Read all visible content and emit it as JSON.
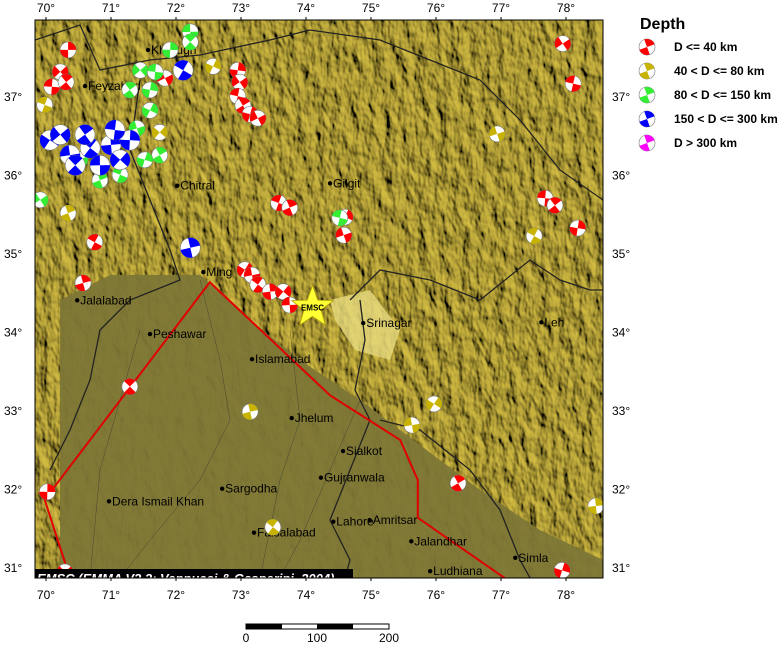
{
  "legend": {
    "title": "Depth",
    "items": [
      {
        "label": "D <= 40 km",
        "color": "#ff0000"
      },
      {
        "label": "40 < D <= 80 km",
        "color": "#c8b400"
      },
      {
        "label": "80 < D <= 150 km",
        "color": "#33ee33"
      },
      {
        "label": "150 < D <= 300 km",
        "color": "#0000ff"
      },
      {
        "label": "D > 300 km",
        "color": "#ff00ff"
      }
    ]
  },
  "credit": "EMSC (EMMA V2.2; Vannucci & Gasperini, 2004)",
  "epicenter": {
    "label": "EMSC",
    "lon": 74.1,
    "lat": 34.32,
    "color": "#ffff33"
  },
  "axes": {
    "lon_ticks": [
      "70°",
      "71°",
      "72°",
      "73°",
      "74°",
      "75°",
      "76°",
      "77°",
      "78°"
    ],
    "lat_ticks": [
      "37°",
      "36°",
      "35°",
      "34°",
      "33°",
      "32°",
      "31°"
    ],
    "lon_range": [
      69.83,
      78.57
    ],
    "lat_range": [
      30.87,
      37.98
    ]
  },
  "scale_bar": {
    "labels": [
      "0",
      "100",
      "200"
    ],
    "unit_km": true
  },
  "cities": [
    {
      "name": "Khorugh",
      "lon": 71.57,
      "lat": 37.6
    },
    {
      "name": "Feyzabad",
      "lon": 70.6,
      "lat": 37.14
    },
    {
      "name": "Chitral",
      "lon": 72.02,
      "lat": 35.87
    },
    {
      "name": "Gilgit",
      "lon": 74.37,
      "lat": 35.9
    },
    {
      "name": "Ming",
      "lon": 72.42,
      "lat": 34.77
    },
    {
      "name": "Jalalabad",
      "lon": 70.48,
      "lat": 34.41
    },
    {
      "name": "Peshawar",
      "lon": 71.6,
      "lat": 33.98
    },
    {
      "name": "Islamabad",
      "lon": 73.17,
      "lat": 33.66
    },
    {
      "name": "Srinagar",
      "lon": 74.88,
      "lat": 34.12
    },
    {
      "name": "Leh",
      "lon": 77.62,
      "lat": 34.13
    },
    {
      "name": "Jhelum",
      "lon": 73.78,
      "lat": 32.91
    },
    {
      "name": "Sialkot",
      "lon": 74.57,
      "lat": 32.49
    },
    {
      "name": "Gujranwala",
      "lon": 74.23,
      "lat": 32.15
    },
    {
      "name": "Sargodha",
      "lon": 72.71,
      "lat": 32.01
    },
    {
      "name": "Dera Ismail Khan",
      "lon": 70.97,
      "lat": 31.85
    },
    {
      "name": "Faisalabad",
      "lon": 73.2,
      "lat": 31.45
    },
    {
      "name": "Lahore",
      "lon": 74.42,
      "lat": 31.59
    },
    {
      "name": "Amritsar",
      "lon": 74.98,
      "lat": 31.61
    },
    {
      "name": "Jalandhar",
      "lon": 75.62,
      "lat": 31.34
    },
    {
      "name": "Ludhiana",
      "lon": 75.91,
      "lat": 30.96
    },
    {
      "name": "Simla",
      "lon": 77.22,
      "lat": 31.13
    }
  ],
  "fault_line": {
    "color": "#e00000",
    "points": [
      [
        70.37,
        30.87
      ],
      [
        69.98,
        31.87
      ],
      [
        72.52,
        34.64
      ],
      [
        74.37,
        33.2
      ],
      [
        75.45,
        32.63
      ],
      [
        75.72,
        32.12
      ],
      [
        75.72,
        31.64
      ],
      [
        77.06,
        30.87
      ]
    ]
  },
  "events": [
    {
      "lon": 70.34,
      "lat": 37.6,
      "d": 0
    },
    {
      "lon": 70.22,
      "lat": 37.32,
      "d": 0
    },
    {
      "lon": 70.09,
      "lat": 37.13,
      "d": 0
    },
    {
      "lon": 70.31,
      "lat": 37.19,
      "d": 0
    },
    {
      "lon": 72.95,
      "lat": 37.34,
      "d": 0
    },
    {
      "lon": 72.98,
      "lat": 37.19,
      "d": 0
    },
    {
      "lon": 72.95,
      "lat": 37.01,
      "d": 0
    },
    {
      "lon": 73.03,
      "lat": 36.89,
      "d": 0
    },
    {
      "lon": 73.14,
      "lat": 36.78,
      "d": 0
    },
    {
      "lon": 73.26,
      "lat": 36.73,
      "d": 0
    },
    {
      "lon": 73.58,
      "lat": 35.65,
      "d": 0
    },
    {
      "lon": 73.75,
      "lat": 35.59,
      "d": 0
    },
    {
      "lon": 74.6,
      "lat": 35.47,
      "d": 0
    },
    {
      "lon": 74.58,
      "lat": 35.24,
      "d": 0
    },
    {
      "lon": 70.75,
      "lat": 35.15,
      "d": 0
    },
    {
      "lon": 70.57,
      "lat": 34.63,
      "d": 0
    },
    {
      "lon": 73.06,
      "lat": 34.8,
      "d": 0
    },
    {
      "lon": 73.17,
      "lat": 34.73,
      "d": 0
    },
    {
      "lon": 73.26,
      "lat": 34.61,
      "d": 0
    },
    {
      "lon": 73.45,
      "lat": 34.52,
      "d": 0
    },
    {
      "lon": 73.65,
      "lat": 34.52,
      "d": 0
    },
    {
      "lon": 73.75,
      "lat": 34.35,
      "d": 0
    },
    {
      "lon": 71.29,
      "lat": 33.31,
      "d": 0
    },
    {
      "lon": 70.02,
      "lat": 31.97,
      "d": 0
    },
    {
      "lon": 70.29,
      "lat": 30.95,
      "d": 0
    },
    {
      "lon": 77.68,
      "lat": 35.71,
      "d": 0
    },
    {
      "lon": 77.83,
      "lat": 35.62,
      "d": 0
    },
    {
      "lon": 78.18,
      "lat": 35.33,
      "d": 0
    },
    {
      "lon": 77.95,
      "lat": 37.68,
      "d": 0
    },
    {
      "lon": 78.11,
      "lat": 37.17,
      "d": 0
    },
    {
      "lon": 76.34,
      "lat": 32.08,
      "d": 0
    },
    {
      "lon": 77.94,
      "lat": 30.97,
      "d": 0
    },
    {
      "lon": 71.83,
      "lat": 37.24,
      "d": 0
    },
    {
      "lon": 69.98,
      "lat": 36.9,
      "d": 1
    },
    {
      "lon": 70.34,
      "lat": 35.52,
      "d": 1
    },
    {
      "lon": 72.57,
      "lat": 37.39,
      "d": 1
    },
    {
      "lon": 76.94,
      "lat": 36.53,
      "d": 1
    },
    {
      "lon": 77.51,
      "lat": 35.23,
      "d": 1
    },
    {
      "lon": 73.14,
      "lat": 32.99,
      "d": 1
    },
    {
      "lon": 75.97,
      "lat": 33.09,
      "d": 1
    },
    {
      "lon": 75.63,
      "lat": 32.82,
      "d": 1
    },
    {
      "lon": 73.49,
      "lat": 31.52,
      "d": 1
    },
    {
      "lon": 78.46,
      "lat": 31.79,
      "d": 1
    },
    {
      "lon": 71.75,
      "lat": 36.55,
      "d": 1
    },
    {
      "lon": 72.22,
      "lat": 37.83,
      "d": 2
    },
    {
      "lon": 72.22,
      "lat": 37.7,
      "d": 2
    },
    {
      "lon": 71.91,
      "lat": 37.6,
      "d": 2
    },
    {
      "lon": 71.45,
      "lat": 37.34,
      "d": 2
    },
    {
      "lon": 71.68,
      "lat": 37.32,
      "d": 2
    },
    {
      "lon": 71.29,
      "lat": 37.09,
      "d": 2
    },
    {
      "lon": 71.6,
      "lat": 37.09,
      "d": 2
    },
    {
      "lon": 69.91,
      "lat": 35.69,
      "d": 2
    },
    {
      "lon": 74.52,
      "lat": 35.46,
      "d": 2
    },
    {
      "lon": 71.75,
      "lat": 36.26,
      "d": 2
    },
    {
      "lon": 71.52,
      "lat": 36.2,
      "d": 2
    },
    {
      "lon": 70.52,
      "lat": 36.2,
      "d": 2
    },
    {
      "lon": 71.14,
      "lat": 36.01,
      "d": 2
    },
    {
      "lon": 70.83,
      "lat": 35.94,
      "d": 2
    },
    {
      "lon": 71.6,
      "lat": 36.83,
      "d": 2
    },
    {
      "lon": 71.4,
      "lat": 36.6,
      "d": 2
    },
    {
      "lon": 72.11,
      "lat": 37.34,
      "d": 3
    },
    {
      "lon": 72.22,
      "lat": 35.08,
      "d": 3
    },
    {
      "lon": 70.06,
      "lat": 36.45,
      "d": 3
    },
    {
      "lon": 70.37,
      "lat": 36.26,
      "d": 3
    },
    {
      "lon": 70.68,
      "lat": 36.35,
      "d": 3
    },
    {
      "lon": 71.0,
      "lat": 36.39,
      "d": 3
    },
    {
      "lon": 71.14,
      "lat": 36.2,
      "d": 3
    },
    {
      "lon": 70.83,
      "lat": 36.13,
      "d": 3
    },
    {
      "lon": 70.45,
      "lat": 36.13,
      "d": 3
    },
    {
      "lon": 71.29,
      "lat": 36.45,
      "d": 3
    },
    {
      "lon": 70.22,
      "lat": 36.52,
      "d": 3
    },
    {
      "lon": 71.06,
      "lat": 36.58,
      "d": 3
    },
    {
      "lon": 70.6,
      "lat": 36.52,
      "d": 3
    }
  ]
}
